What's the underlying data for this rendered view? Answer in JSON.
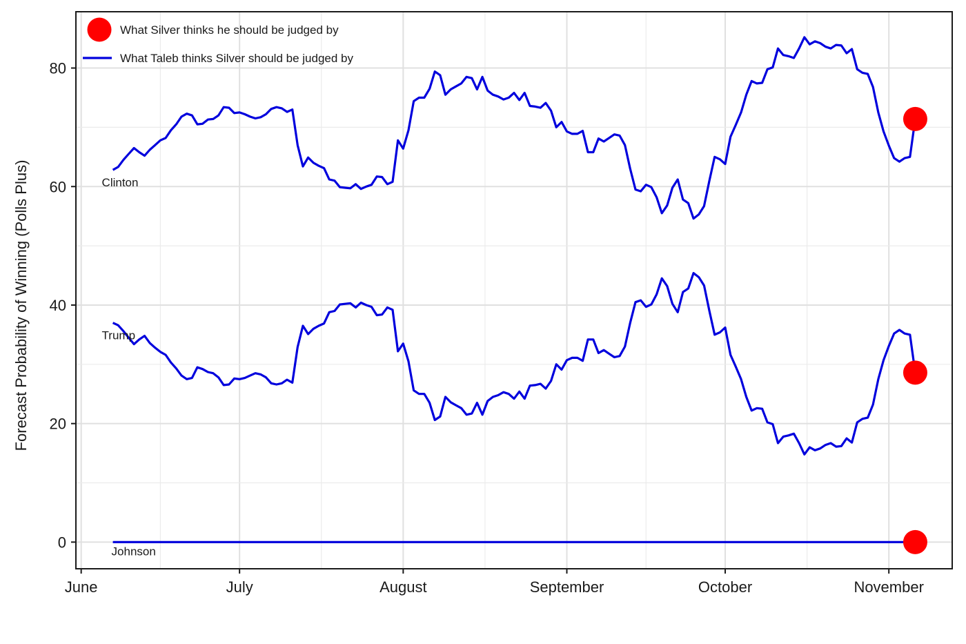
{
  "chart_data": {
    "type": "line",
    "title": "",
    "xlabel": "",
    "ylabel": "Forecast Probability of Winning (Polls Plus)",
    "x_start": "2016-05-31",
    "xlim": [
      "2016-05-31",
      "2016-11-13"
    ],
    "ylim": [
      -4.5,
      89.5
    ],
    "x_ticks": [
      {
        "date": "2016-06-01",
        "label": "June"
      },
      {
        "date": "2016-07-01",
        "label": "July"
      },
      {
        "date": "2016-08-01",
        "label": "August"
      },
      {
        "date": "2016-09-01",
        "label": "September"
      },
      {
        "date": "2016-10-01",
        "label": "October"
      },
      {
        "date": "2016-11-01",
        "label": "November"
      }
    ],
    "y_ticks": [
      0,
      20,
      40,
      60,
      80
    ],
    "grid": true,
    "legend": {
      "position": "top-left",
      "entries": [
        {
          "label": "What Silver thinks he should be judged by",
          "marker": "point",
          "color": "#ff0000"
        },
        {
          "label": "What Taleb thinks Silver should be judged by",
          "marker": "line",
          "color": "#0000dd"
        }
      ]
    },
    "series": [
      {
        "name": "Clinton",
        "color": "#0000dd",
        "points": [
          [
            7,
            62.8
          ],
          [
            8,
            63.3
          ],
          [
            9,
            64.5
          ],
          [
            10,
            65.5
          ],
          [
            11,
            66.5
          ],
          [
            12,
            65.8
          ],
          [
            13,
            65.2
          ],
          [
            14,
            66.2
          ],
          [
            15,
            67.0
          ],
          [
            16,
            67.8
          ],
          [
            17,
            68.2
          ],
          [
            18,
            69.5
          ],
          [
            19,
            70.5
          ],
          [
            20,
            71.8
          ],
          [
            21,
            72.3
          ],
          [
            22,
            72.0
          ],
          [
            23,
            70.5
          ],
          [
            24,
            70.6
          ],
          [
            25,
            71.3
          ],
          [
            26,
            71.4
          ],
          [
            27,
            72.0
          ],
          [
            28,
            73.4
          ],
          [
            29,
            73.3
          ],
          [
            30,
            72.4
          ],
          [
            31,
            72.5
          ],
          [
            32,
            72.2
          ],
          [
            33,
            71.8
          ],
          [
            34,
            71.5
          ],
          [
            35,
            71.7
          ],
          [
            36,
            72.2
          ],
          [
            37,
            73.1
          ],
          [
            38,
            73.4
          ],
          [
            39,
            73.2
          ],
          [
            40,
            72.6
          ],
          [
            41,
            73.0
          ],
          [
            42,
            67.0
          ],
          [
            43,
            63.4
          ],
          [
            44,
            64.9
          ],
          [
            45,
            64.0
          ],
          [
            46,
            63.5
          ],
          [
            47,
            63.1
          ],
          [
            48,
            61.2
          ],
          [
            49,
            61.0
          ],
          [
            50,
            59.9
          ],
          [
            51,
            59.8
          ],
          [
            52,
            59.7
          ],
          [
            53,
            60.4
          ],
          [
            54,
            59.6
          ],
          [
            55,
            60.0
          ],
          [
            56,
            60.3
          ],
          [
            57,
            61.7
          ],
          [
            58,
            61.6
          ],
          [
            59,
            60.4
          ],
          [
            60,
            60.8
          ],
          [
            61,
            67.8
          ],
          [
            62,
            66.4
          ],
          [
            63,
            69.5
          ],
          [
            64,
            74.4
          ],
          [
            65,
            75.0
          ],
          [
            66,
            75.0
          ],
          [
            67,
            76.5
          ],
          [
            68,
            79.4
          ],
          [
            69,
            78.8
          ],
          [
            70,
            75.5
          ],
          [
            71,
            76.4
          ],
          [
            72,
            76.9
          ],
          [
            73,
            77.4
          ],
          [
            74,
            78.5
          ],
          [
            75,
            78.3
          ],
          [
            76,
            76.4
          ],
          [
            77,
            78.5
          ],
          [
            78,
            76.2
          ],
          [
            79,
            75.5
          ],
          [
            80,
            75.2
          ],
          [
            81,
            74.7
          ],
          [
            82,
            75.0
          ],
          [
            83,
            75.8
          ],
          [
            84,
            74.6
          ],
          [
            85,
            75.8
          ],
          [
            86,
            73.6
          ],
          [
            87,
            73.5
          ],
          [
            88,
            73.3
          ],
          [
            89,
            74.1
          ],
          [
            90,
            72.8
          ],
          [
            91,
            70.0
          ],
          [
            92,
            70.9
          ],
          [
            93,
            69.3
          ],
          [
            94,
            68.9
          ],
          [
            95,
            68.9
          ],
          [
            96,
            69.4
          ],
          [
            97,
            65.8
          ],
          [
            98,
            65.8
          ],
          [
            99,
            68.1
          ],
          [
            100,
            67.6
          ],
          [
            101,
            68.2
          ],
          [
            102,
            68.8
          ],
          [
            103,
            68.6
          ],
          [
            104,
            67.0
          ],
          [
            105,
            63.0
          ],
          [
            106,
            59.5
          ],
          [
            107,
            59.2
          ],
          [
            108,
            60.3
          ],
          [
            109,
            59.9
          ],
          [
            110,
            58.2
          ],
          [
            111,
            55.5
          ],
          [
            112,
            56.8
          ],
          [
            113,
            59.8
          ],
          [
            114,
            61.2
          ],
          [
            115,
            57.8
          ],
          [
            116,
            57.2
          ],
          [
            117,
            54.6
          ],
          [
            118,
            55.3
          ],
          [
            119,
            56.7
          ],
          [
            120,
            61.0
          ],
          [
            121,
            65.0
          ],
          [
            122,
            64.6
          ],
          [
            123,
            63.8
          ],
          [
            124,
            68.4
          ],
          [
            125,
            70.4
          ],
          [
            126,
            72.5
          ],
          [
            127,
            75.5
          ],
          [
            128,
            77.8
          ],
          [
            129,
            77.4
          ],
          [
            130,
            77.5
          ],
          [
            131,
            79.8
          ],
          [
            132,
            80.1
          ],
          [
            133,
            83.3
          ],
          [
            134,
            82.2
          ],
          [
            135,
            82.0
          ],
          [
            136,
            81.7
          ],
          [
            137,
            83.3
          ],
          [
            138,
            85.2
          ],
          [
            139,
            84.0
          ],
          [
            140,
            84.5
          ],
          [
            141,
            84.2
          ],
          [
            142,
            83.6
          ],
          [
            143,
            83.3
          ],
          [
            144,
            83.9
          ],
          [
            145,
            83.8
          ],
          [
            146,
            82.5
          ],
          [
            147,
            83.2
          ],
          [
            148,
            79.8
          ],
          [
            149,
            79.2
          ],
          [
            150,
            79.0
          ],
          [
            151,
            76.8
          ],
          [
            152,
            72.5
          ],
          [
            153,
            69.3
          ],
          [
            154,
            66.9
          ],
          [
            155,
            64.8
          ],
          [
            156,
            64.2
          ],
          [
            157,
            64.8
          ],
          [
            158,
            65.0
          ],
          [
            159,
            71.4
          ]
        ]
      },
      {
        "name": "Trump",
        "color": "#0000dd",
        "points": [
          [
            7,
            37.0
          ],
          [
            8,
            36.6
          ],
          [
            9,
            35.6
          ],
          [
            10,
            34.5
          ],
          [
            11,
            33.4
          ],
          [
            12,
            34.2
          ],
          [
            13,
            34.8
          ],
          [
            14,
            33.6
          ],
          [
            15,
            32.8
          ],
          [
            16,
            32.1
          ],
          [
            17,
            31.6
          ],
          [
            18,
            30.3
          ],
          [
            19,
            29.3
          ],
          [
            20,
            28.1
          ],
          [
            21,
            27.5
          ],
          [
            22,
            27.7
          ],
          [
            23,
            29.5
          ],
          [
            24,
            29.2
          ],
          [
            25,
            28.7
          ],
          [
            26,
            28.5
          ],
          [
            27,
            27.8
          ],
          [
            28,
            26.5
          ],
          [
            29,
            26.6
          ],
          [
            30,
            27.6
          ],
          [
            31,
            27.5
          ],
          [
            32,
            27.7
          ],
          [
            33,
            28.1
          ],
          [
            34,
            28.5
          ],
          [
            35,
            28.3
          ],
          [
            36,
            27.8
          ],
          [
            37,
            26.8
          ],
          [
            38,
            26.6
          ],
          [
            39,
            26.8
          ],
          [
            40,
            27.4
          ],
          [
            41,
            26.9
          ],
          [
            42,
            32.9
          ],
          [
            43,
            36.5
          ],
          [
            44,
            35.1
          ],
          [
            45,
            36.0
          ],
          [
            46,
            36.5
          ],
          [
            47,
            36.9
          ],
          [
            48,
            38.8
          ],
          [
            49,
            39.0
          ],
          [
            50,
            40.1
          ],
          [
            51,
            40.2
          ],
          [
            52,
            40.3
          ],
          [
            53,
            39.6
          ],
          [
            54,
            40.4
          ],
          [
            55,
            40.0
          ],
          [
            56,
            39.7
          ],
          [
            57,
            38.3
          ],
          [
            58,
            38.4
          ],
          [
            59,
            39.6
          ],
          [
            60,
            39.2
          ],
          [
            61,
            32.2
          ],
          [
            62,
            33.5
          ],
          [
            63,
            30.5
          ],
          [
            64,
            25.6
          ],
          [
            65,
            25.0
          ],
          [
            66,
            25.0
          ],
          [
            67,
            23.5
          ],
          [
            68,
            20.6
          ],
          [
            69,
            21.2
          ],
          [
            70,
            24.5
          ],
          [
            71,
            23.6
          ],
          [
            72,
            23.1
          ],
          [
            73,
            22.6
          ],
          [
            74,
            21.5
          ],
          [
            75,
            21.7
          ],
          [
            76,
            23.5
          ],
          [
            77,
            21.5
          ],
          [
            78,
            23.8
          ],
          [
            79,
            24.5
          ],
          [
            80,
            24.8
          ],
          [
            81,
            25.3
          ],
          [
            82,
            25.0
          ],
          [
            83,
            24.2
          ],
          [
            84,
            25.4
          ],
          [
            85,
            24.2
          ],
          [
            86,
            26.4
          ],
          [
            87,
            26.5
          ],
          [
            88,
            26.7
          ],
          [
            89,
            25.9
          ],
          [
            90,
            27.2
          ],
          [
            91,
            30.0
          ],
          [
            92,
            29.1
          ],
          [
            93,
            30.7
          ],
          [
            94,
            31.1
          ],
          [
            95,
            31.1
          ],
          [
            96,
            30.6
          ],
          [
            97,
            34.2
          ],
          [
            98,
            34.2
          ],
          [
            99,
            31.9
          ],
          [
            100,
            32.4
          ],
          [
            101,
            31.8
          ],
          [
            102,
            31.2
          ],
          [
            103,
            31.4
          ],
          [
            104,
            33.0
          ],
          [
            105,
            37.0
          ],
          [
            106,
            40.5
          ],
          [
            107,
            40.8
          ],
          [
            108,
            39.7
          ],
          [
            109,
            40.1
          ],
          [
            110,
            41.8
          ],
          [
            111,
            44.5
          ],
          [
            112,
            43.2
          ],
          [
            113,
            40.2
          ],
          [
            114,
            38.8
          ],
          [
            115,
            42.2
          ],
          [
            116,
            42.8
          ],
          [
            117,
            45.4
          ],
          [
            118,
            44.7
          ],
          [
            119,
            43.3
          ],
          [
            120,
            39.0
          ],
          [
            121,
            35.0
          ],
          [
            122,
            35.4
          ],
          [
            123,
            36.2
          ],
          [
            124,
            31.6
          ],
          [
            125,
            29.6
          ],
          [
            126,
            27.5
          ],
          [
            127,
            24.5
          ],
          [
            128,
            22.2
          ],
          [
            129,
            22.6
          ],
          [
            130,
            22.5
          ],
          [
            131,
            20.2
          ],
          [
            132,
            19.9
          ],
          [
            133,
            16.7
          ],
          [
            134,
            17.8
          ],
          [
            135,
            18.0
          ],
          [
            136,
            18.3
          ],
          [
            137,
            16.7
          ],
          [
            138,
            14.8
          ],
          [
            139,
            16.0
          ],
          [
            140,
            15.5
          ],
          [
            141,
            15.8
          ],
          [
            142,
            16.4
          ],
          [
            143,
            16.7
          ],
          [
            144,
            16.1
          ],
          [
            145,
            16.2
          ],
          [
            146,
            17.5
          ],
          [
            147,
            16.8
          ],
          [
            148,
            20.2
          ],
          [
            149,
            20.8
          ],
          [
            150,
            21.0
          ],
          [
            151,
            23.2
          ],
          [
            152,
            27.5
          ],
          [
            153,
            30.7
          ],
          [
            154,
            33.1
          ],
          [
            155,
            35.2
          ],
          [
            156,
            35.8
          ],
          [
            157,
            35.2
          ],
          [
            158,
            35.0
          ],
          [
            159,
            28.6
          ]
        ]
      },
      {
        "name": "Johnson",
        "color": "#0000dd",
        "points": [
          [
            7,
            0
          ],
          [
            159,
            0
          ]
        ]
      }
    ],
    "outcomes": {
      "color": "#ff0000",
      "day": 159,
      "values": [
        71.4,
        28.6,
        0
      ]
    }
  }
}
